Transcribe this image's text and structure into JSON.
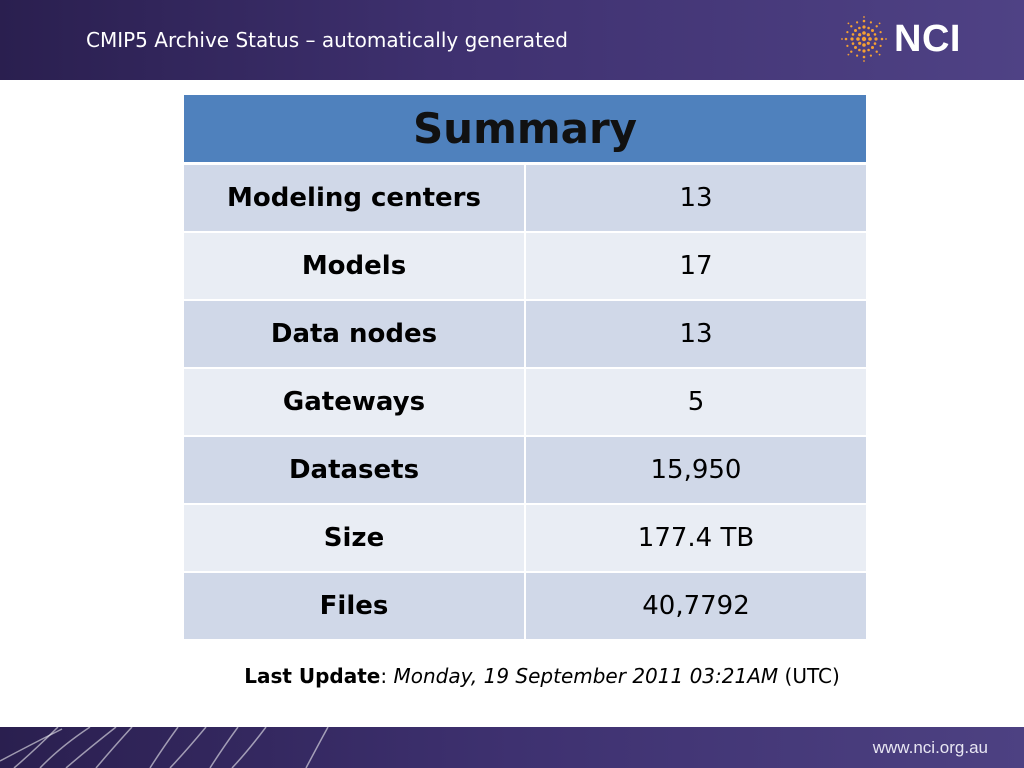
{
  "header": {
    "title": "CMIP5 Archive Status – automatically generated",
    "logo_text": "NCI",
    "logo_color": "#f5a033"
  },
  "table": {
    "title": "Summary",
    "rows": [
      {
        "label": "Modeling centers",
        "value": "13"
      },
      {
        "label": "Models",
        "value": "17"
      },
      {
        "label": "Data nodes",
        "value": "13"
      },
      {
        "label": "Gateways",
        "value": "5"
      },
      {
        "label": "Datasets",
        "value": "15,950"
      },
      {
        "label": "Size",
        "value": "177.4 TB"
      },
      {
        "label": "Files",
        "value": "40,7792"
      }
    ]
  },
  "last_update": {
    "label": "Last Update",
    "date": "Monday, 19 September 2011 03:21AM",
    "timezone": "(UTC)"
  },
  "footer": {
    "url": "www.nci.org.au"
  }
}
